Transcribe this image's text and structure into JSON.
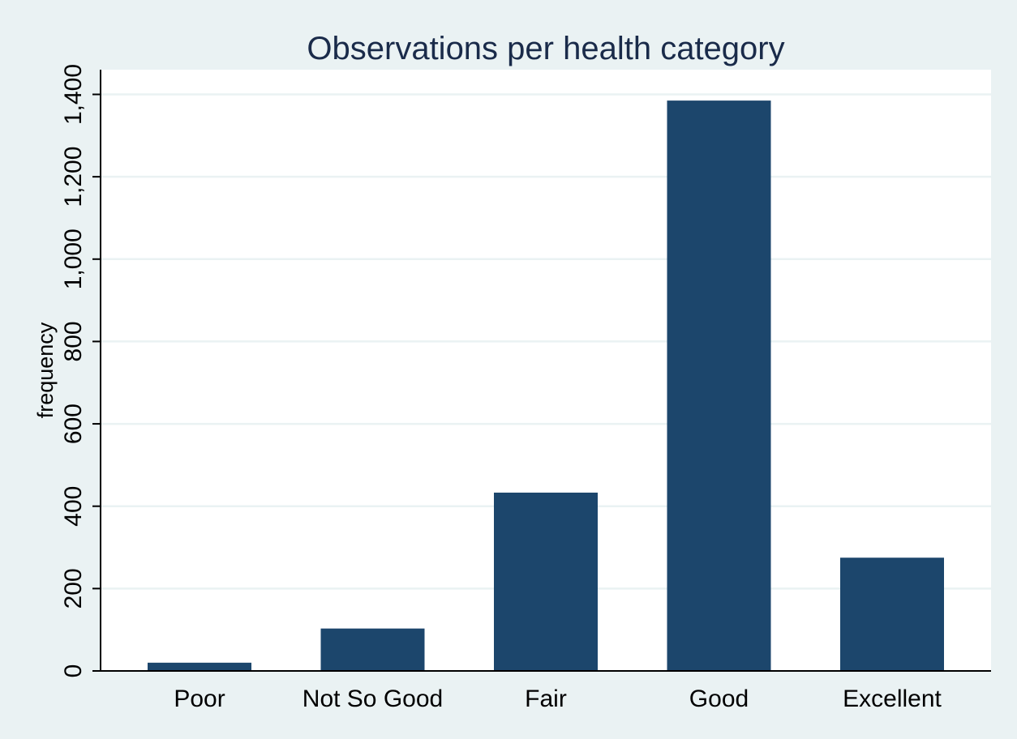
{
  "chart_data": {
    "type": "bar",
    "title": "Observations per health category",
    "xlabel": "",
    "ylabel": "frequency",
    "categories": [
      "Poor",
      "Not So Good",
      "Fair",
      "Good",
      "Excellent"
    ],
    "values": [
      20,
      103,
      433,
      1385,
      275
    ],
    "ylim": [
      0,
      1460
    ],
    "yticks": [
      0,
      200,
      400,
      600,
      800,
      1000,
      1200,
      1400
    ],
    "ytick_labels": [
      "0",
      "200",
      "400",
      "600",
      "800",
      "1,000",
      "1,200",
      "1,400"
    ],
    "grid": true,
    "legend": "none",
    "colors": {
      "bar": "#1c466c",
      "plot_background": "#ffffff",
      "page_background": "#eaf2f3",
      "gridline": "#eaf2f3",
      "title": "#1a2b4a"
    }
  }
}
